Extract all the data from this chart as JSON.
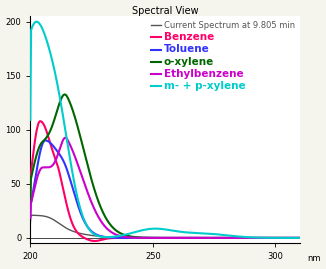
{
  "title": "Spectral View",
  "xlabel": "nm",
  "xlim": [
    200,
    310
  ],
  "ylim": [
    -5,
    205
  ],
  "xticks": [
    200,
    250,
    300
  ],
  "yticks": [
    0,
    50,
    100,
    150,
    200
  ],
  "background_color": "#f5f5ee",
  "plot_bg": "#ffffff",
  "legend": [
    {
      "label": "Current Spectrum at 9.805 min",
      "color": "#555555",
      "bold": false,
      "lw": 1.0
    },
    {
      "label": "Benzene",
      "color": "#ff0066",
      "bold": true,
      "lw": 1.5
    },
    {
      "label": "Toluene",
      "color": "#3333ff",
      "bold": true,
      "lw": 1.5
    },
    {
      "label": "o-xylene",
      "color": "#006600",
      "bold": true,
      "lw": 1.5
    },
    {
      "label": "Ethylbenzene",
      "color": "#cc00cc",
      "bold": true,
      "lw": 1.5
    },
    {
      "label": "m- + p-xylene",
      "color": "#00cccc",
      "bold": true,
      "lw": 1.5
    }
  ],
  "title_fontsize": 7,
  "tick_fontsize": 6,
  "legend_fontsize": 6
}
